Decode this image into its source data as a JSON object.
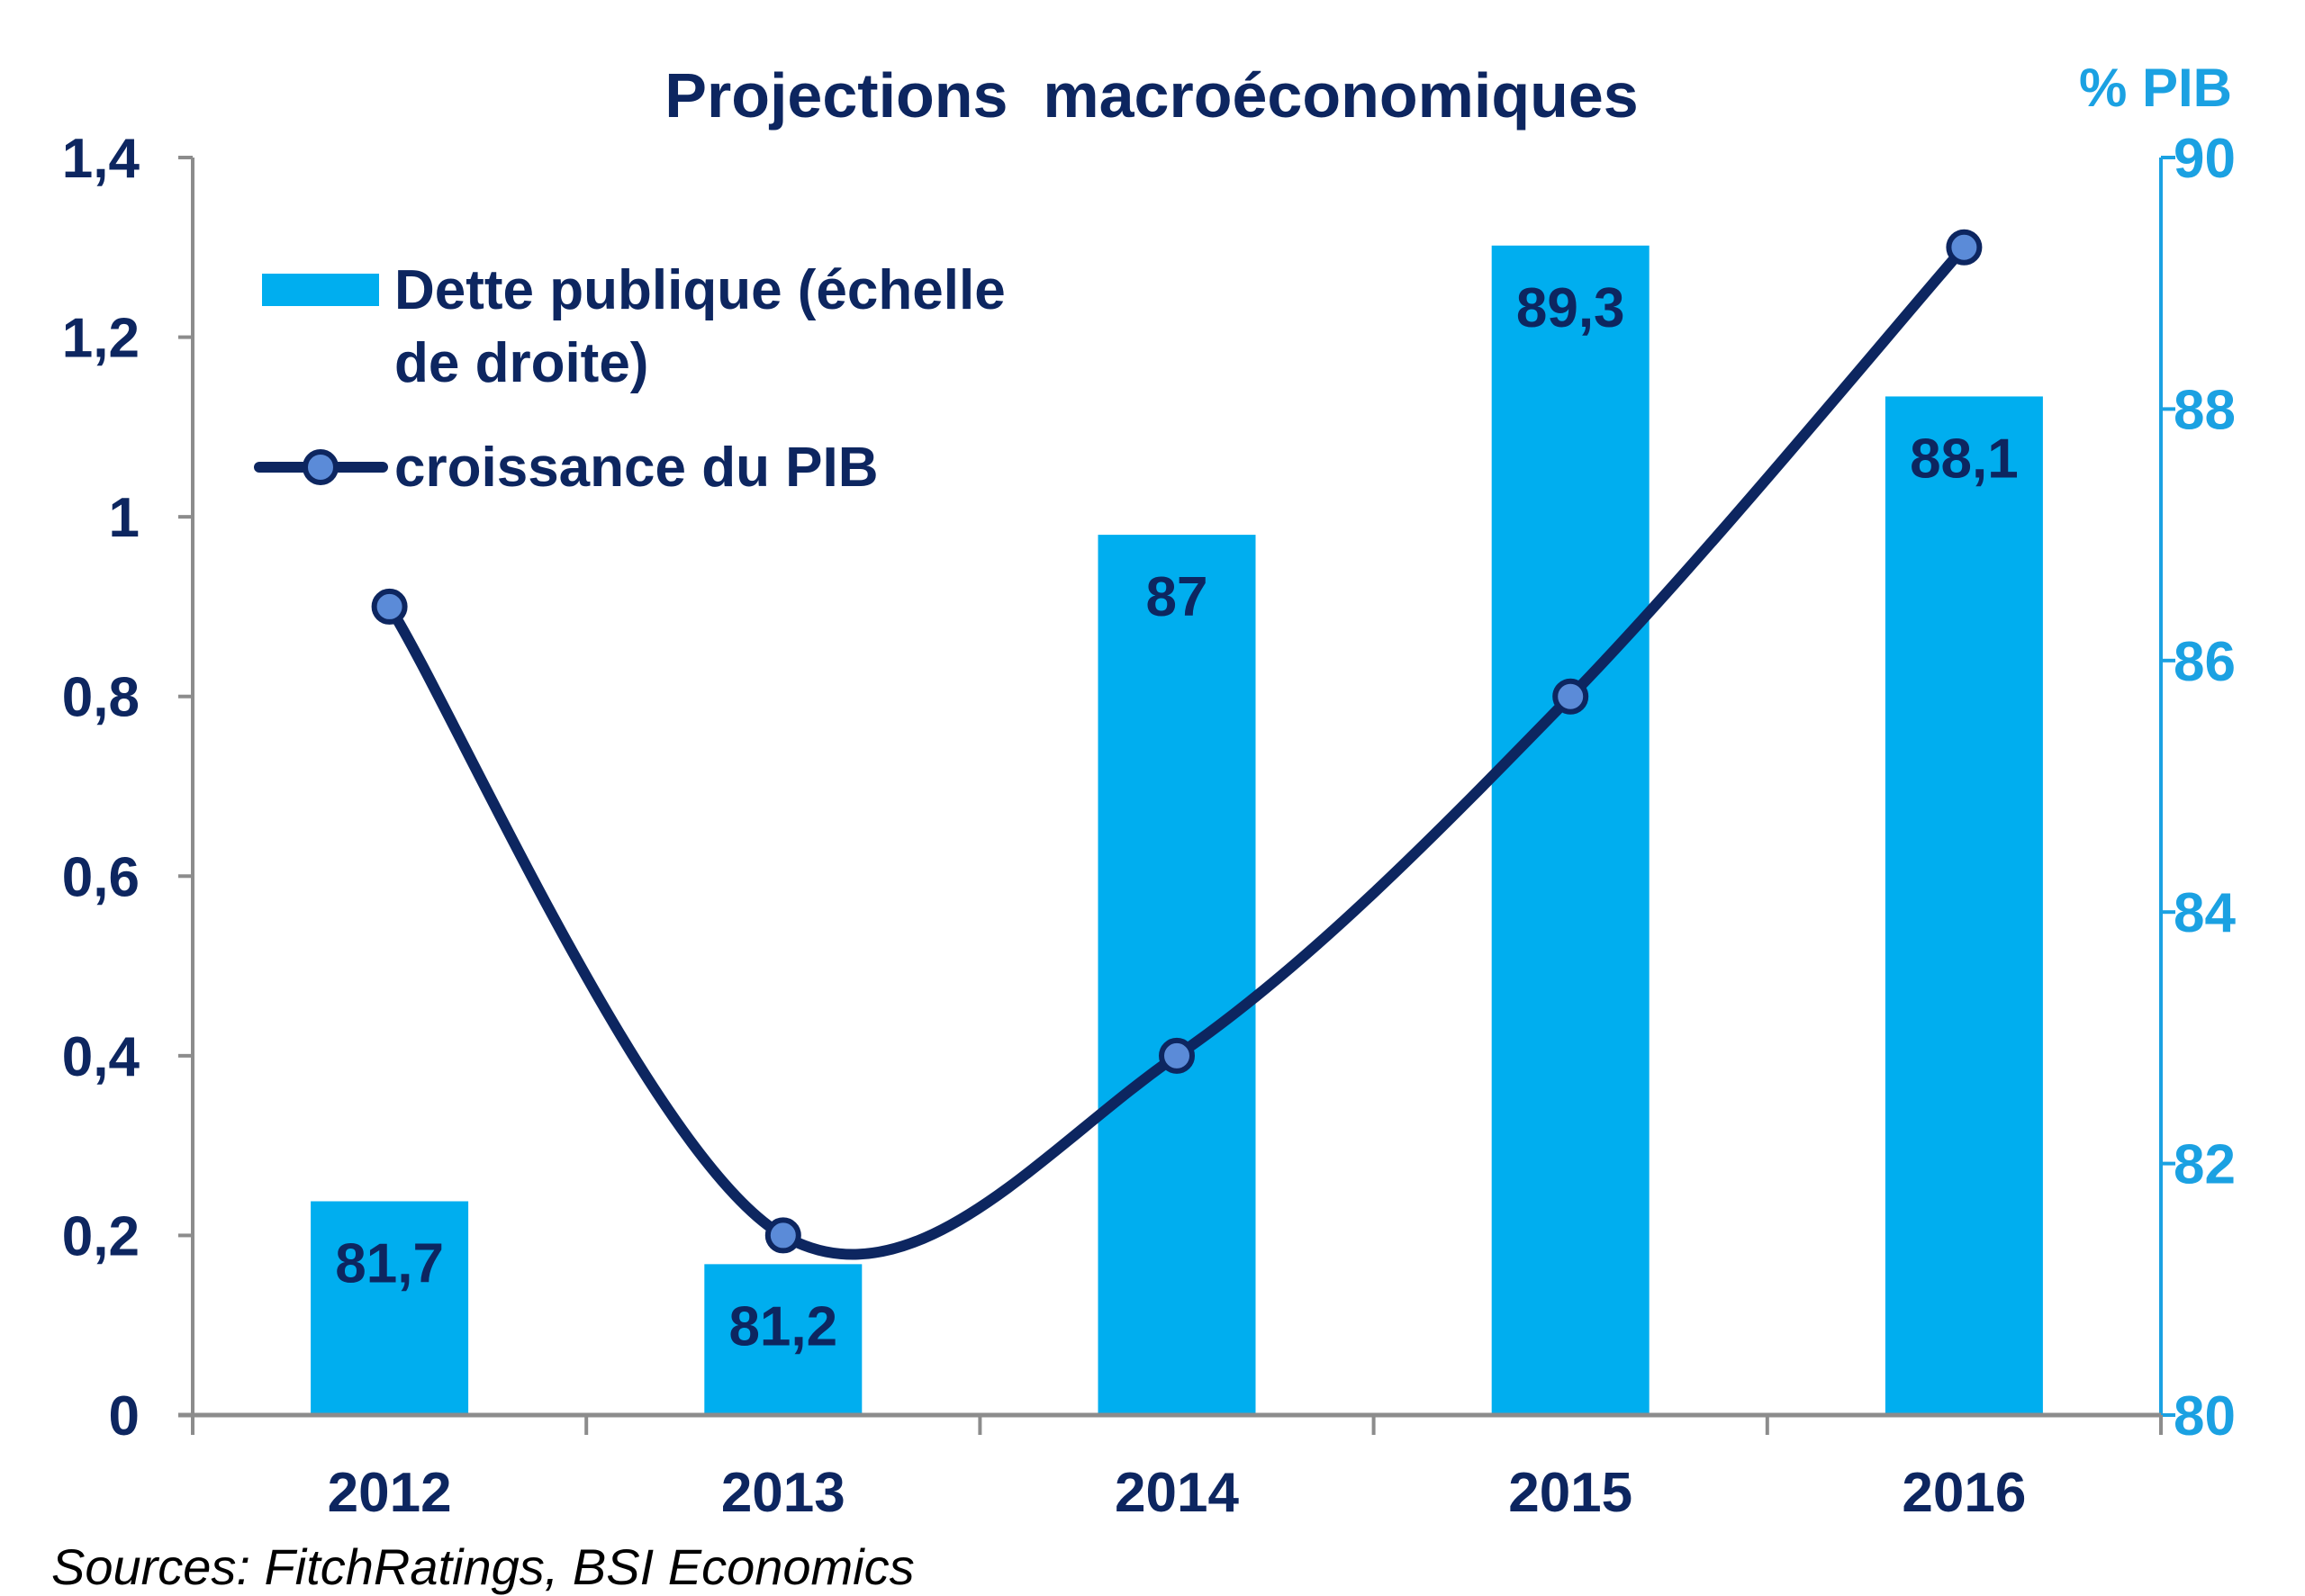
{
  "chart_data": {
    "type": "bar+line",
    "title": "Projections  macroéconomiques",
    "categories": [
      "2012",
      "2013",
      "2014",
      "2015",
      "2016"
    ],
    "series": [
      {
        "name": "Dette publique (échelle de droite)",
        "legend_lines": [
          "Dette publique (échelle",
          "de droite)"
        ],
        "type": "bar",
        "axis": "right",
        "values": [
          81.7,
          81.2,
          87,
          89.3,
          88.1
        ],
        "labels": [
          "81,7",
          "81,2",
          "87",
          "89,3",
          "88,1"
        ],
        "color": "#00AEEF"
      },
      {
        "name": "croissance du PIB",
        "type": "line",
        "axis": "left",
        "values": [
          0.9,
          0.2,
          0.4,
          0.8,
          1.3
        ],
        "color": "#0D2660",
        "marker_color": "#5B8BD8"
      }
    ],
    "left_axis": {
      "ylim": [
        0,
        1.4
      ],
      "ticks": [
        "0",
        "0,2",
        "0,4",
        "0,6",
        "0,8",
        "1",
        "1,2",
        "1,4"
      ]
    },
    "right_axis": {
      "label": "% PIB",
      "ylim": [
        80,
        90
      ],
      "ticks": [
        "80",
        "82",
        "84",
        "86",
        "88",
        "90"
      ],
      "color": "#1BA1E2"
    },
    "grid": false,
    "legend_placement": "top-left",
    "source": "Sources: FitchRatings, BSI Economics"
  }
}
